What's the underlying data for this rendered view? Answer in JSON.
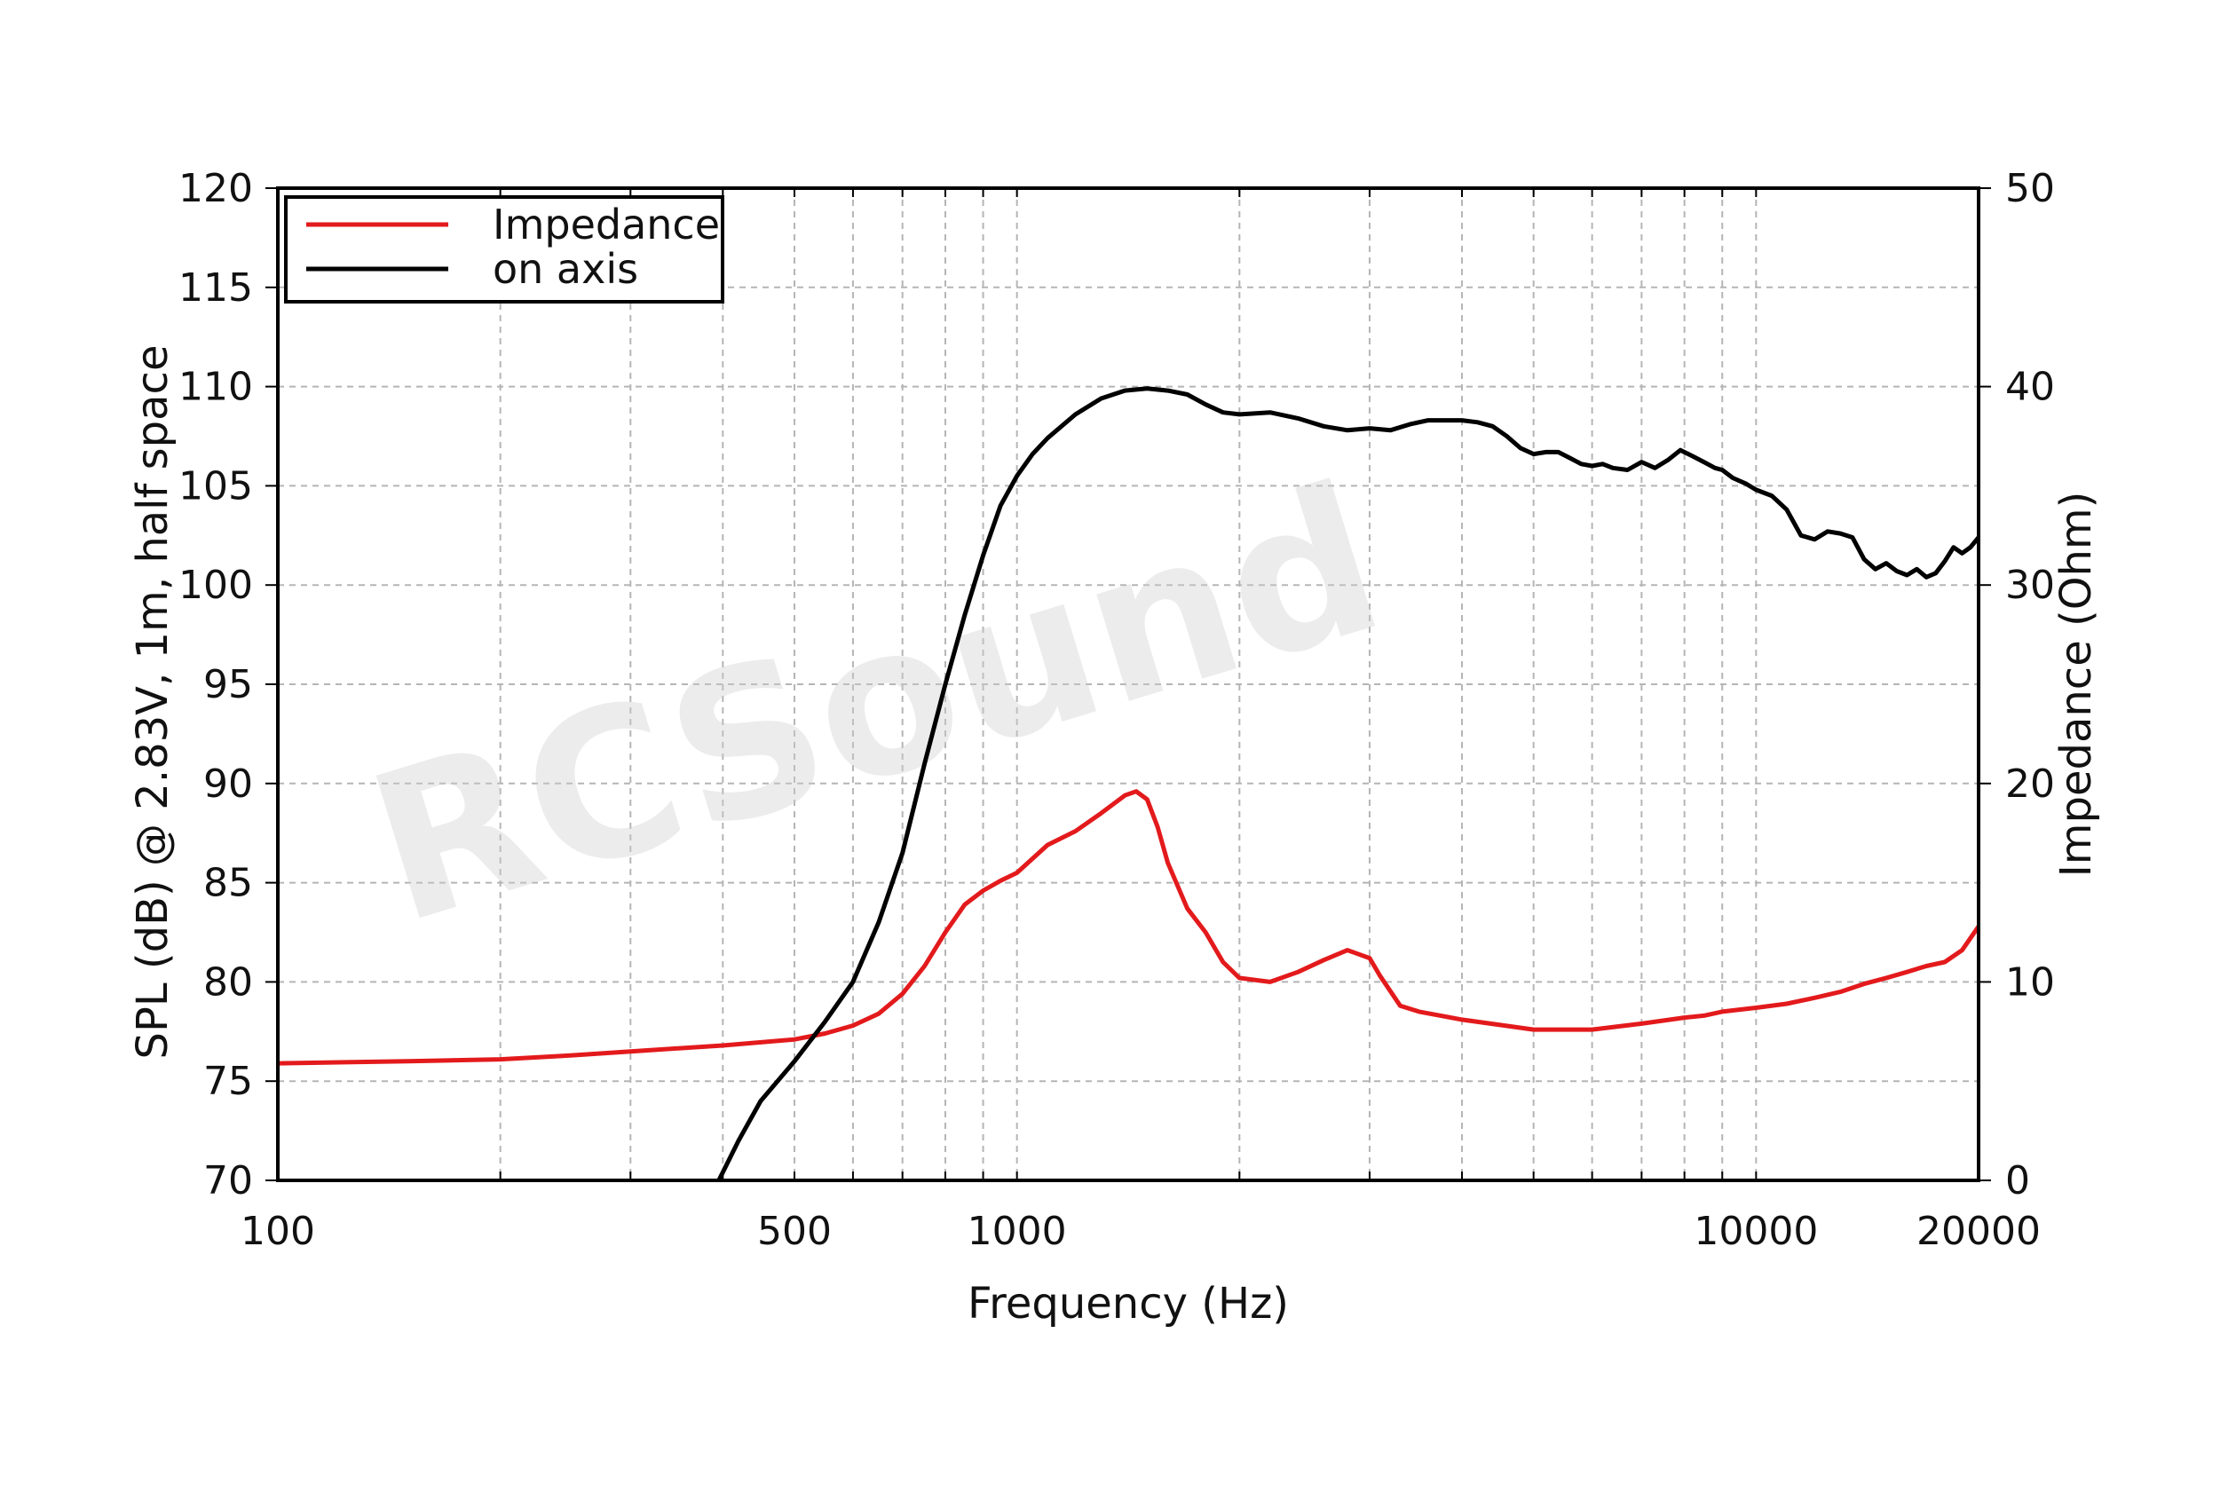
{
  "chart_data": {
    "type": "line",
    "x_scale": "log",
    "xlabel": "Frequency (Hz)",
    "ylabel": "SPL (dB) @ 2.83V, 1m, half space",
    "y2label": "Impedance (Ohm)",
    "xlim": [
      100,
      20000
    ],
    "ylim": [
      70,
      120
    ],
    "y2lim": [
      0,
      50
    ],
    "x_ticks": [
      100,
      500,
      1000,
      10000,
      20000
    ],
    "x_tick_labels": [
      "100",
      "500",
      "1000",
      "10000",
      "20000"
    ],
    "y_ticks": [
      70,
      75,
      80,
      85,
      90,
      95,
      100,
      105,
      110,
      115,
      120
    ],
    "y_tick_labels": [
      "70",
      "75",
      "80",
      "85",
      "90",
      "95",
      "100",
      "105",
      "110",
      "115",
      "120"
    ],
    "y2_ticks": [
      0,
      10,
      20,
      30,
      40,
      50
    ],
    "y2_tick_labels": [
      "0",
      "10",
      "20",
      "30",
      "40",
      "50"
    ],
    "grid": true,
    "legend_position": "top-left",
    "watermark": "RCSound",
    "series": [
      {
        "name": "Impedance",
        "axis": "right",
        "color": "#e31a1c",
        "x": [
          100,
          150,
          200,
          250,
          300,
          400,
          500,
          550,
          600,
          650,
          700,
          750,
          800,
          850,
          900,
          950,
          1000,
          1100,
          1200,
          1300,
          1400,
          1450,
          1500,
          1550,
          1600,
          1700,
          1800,
          1900,
          2000,
          2200,
          2400,
          2600,
          2800,
          3000,
          3100,
          3300,
          3500,
          4000,
          5000,
          6000,
          7000,
          8000,
          8500,
          9000,
          10000,
          11000,
          12000,
          13000,
          14000,
          15000,
          16000,
          17000,
          18000,
          19000,
          20000
        ],
        "values": [
          5.9,
          6.0,
          6.1,
          6.3,
          6.5,
          6.8,
          7.1,
          7.4,
          7.8,
          8.4,
          9.4,
          10.8,
          12.5,
          13.9,
          14.6,
          15.1,
          15.5,
          16.9,
          17.6,
          18.5,
          19.4,
          19.6,
          19.2,
          17.8,
          16.0,
          13.7,
          12.5,
          11.0,
          10.2,
          10.0,
          10.5,
          11.1,
          11.6,
          11.2,
          10.3,
          8.8,
          8.5,
          8.1,
          7.6,
          7.6,
          7.9,
          8.2,
          8.3,
          8.5,
          8.7,
          8.9,
          9.2,
          9.5,
          9.9,
          10.2,
          10.5,
          10.8,
          11.0,
          11.6,
          12.8
        ]
      },
      {
        "name": "on axis",
        "axis": "left",
        "color": "#000000",
        "x": [
          395,
          420,
          450,
          500,
          550,
          600,
          650,
          700,
          750,
          800,
          850,
          900,
          950,
          1000,
          1050,
          1100,
          1200,
          1300,
          1400,
          1500,
          1600,
          1700,
          1800,
          1900,
          2000,
          2200,
          2400,
          2600,
          2800,
          3000,
          3200,
          3400,
          3600,
          3800,
          4000,
          4200,
          4400,
          4600,
          4800,
          5000,
          5200,
          5400,
          5600,
          5800,
          6000,
          6200,
          6400,
          6700,
          7000,
          7300,
          7600,
          7900,
          8200,
          8500,
          8800,
          9000,
          9300,
          9700,
          10000,
          10500,
          11000,
          11500,
          12000,
          12500,
          13000,
          13500,
          14000,
          14500,
          15000,
          15500,
          16000,
          16500,
          17000,
          17500,
          18000,
          18500,
          19000,
          19500,
          20000
        ],
        "values": [
          70.0,
          72.0,
          74.0,
          76.0,
          78.0,
          80.0,
          83.0,
          86.5,
          91.0,
          95.0,
          98.5,
          101.5,
          104.0,
          105.5,
          106.6,
          107.4,
          108.6,
          109.4,
          109.8,
          109.9,
          109.8,
          109.6,
          109.1,
          108.7,
          108.6,
          108.7,
          108.4,
          108.0,
          107.8,
          107.9,
          107.8,
          108.1,
          108.3,
          108.3,
          108.3,
          108.2,
          108.0,
          107.5,
          106.9,
          106.6,
          106.7,
          106.7,
          106.4,
          106.1,
          106.0,
          106.1,
          105.9,
          105.8,
          106.2,
          105.9,
          106.3,
          106.8,
          106.5,
          106.2,
          105.9,
          105.8,
          105.4,
          105.1,
          104.8,
          104.5,
          103.8,
          102.5,
          102.3,
          102.7,
          102.6,
          102.4,
          101.3,
          100.8,
          101.1,
          100.7,
          100.5,
          100.8,
          100.4,
          100.6,
          101.2,
          101.9,
          101.6,
          101.9,
          102.4
        ]
      }
    ]
  }
}
